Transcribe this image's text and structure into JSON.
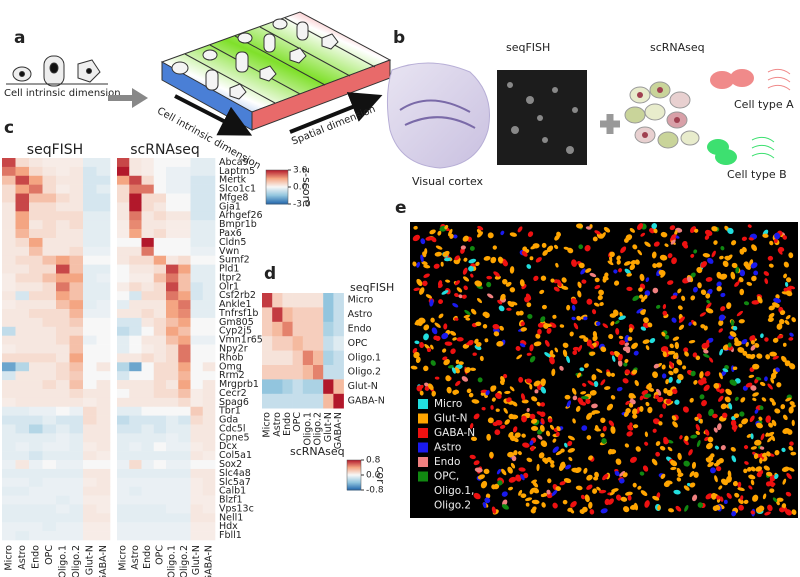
{
  "panel_a": {
    "label": "a",
    "cell_axis": "Cell intrinsic dimension",
    "slab_cell_axis": "Cell intrinsic dimension",
    "slab_spatial_axis": "Spatial dimension"
  },
  "panel_b": {
    "label": "b",
    "seqfish_title": "seqFISH",
    "scrnaseq_title": "scRNAseq",
    "visual_cortex": "Visual cortex",
    "cell_type_a": "Cell type A",
    "cell_type_b": "Cell type B"
  },
  "panel_c": {
    "label": "c",
    "cell_types": [
      "Micro",
      "Astro",
      "Endo",
      "OPC",
      "Oligo.1",
      "Oligo.2",
      "Glut-N",
      "GABA-N"
    ],
    "genes": [
      "Abca9",
      "Laptm5",
      "Mertk",
      "Slco1c1",
      "Mfge8",
      "Gja1",
      "Arhgef26",
      "Bmpr1b",
      "Pax6",
      "Cldn5",
      "Vwn",
      "Sumf2",
      "Pld1",
      "Itpr2",
      "Olr1",
      "Csf2rb2",
      "Ankle1",
      "Tnfrsf1b",
      "Gm805",
      "Cyp2j5",
      "Vmn1r65",
      "Npy2r",
      "Rhob",
      "Omg",
      "Rrm2",
      "Mrgprb1",
      "Cecr2",
      "Spag6",
      "Tbr1",
      "Gda",
      "Cdc5l",
      "Cpne5",
      "Dcx",
      "Col5a1",
      "Sox2",
      "Slc4a8",
      "Slc5a7",
      "Calb1",
      "Blzf1",
      "Vps13c",
      "Nell1",
      "Hdx",
      "Fbll1"
    ],
    "heatmaps": [
      {
        "title": "seqFISH",
        "values": [
          [
            2.5,
            0.5,
            0.3,
            0.2,
            0.2,
            0.2,
            -0.3,
            -0.3
          ],
          [
            2,
            1.5,
            0.5,
            0.3,
            0.2,
            0.3,
            -0.5,
            -0.3
          ],
          [
            1,
            2.5,
            1.5,
            0.5,
            0.3,
            0.3,
            -0.5,
            -0.5
          ],
          [
            0.5,
            1.5,
            2,
            0.5,
            0.2,
            0.3,
            -0.5,
            -0.3
          ],
          [
            0.5,
            2.5,
            1,
            1,
            0.5,
            0.3,
            -0.5,
            -0.5
          ],
          [
            0.3,
            2.5,
            0.5,
            0.5,
            0.3,
            0.3,
            -0.5,
            -0.5
          ],
          [
            0.3,
            1.5,
            0.5,
            0.5,
            0.5,
            0.5,
            -0.3,
            -0.3
          ],
          [
            0.3,
            1.5,
            0.3,
            0.5,
            0.3,
            0.5,
            -0.3,
            -0.3
          ],
          [
            0.3,
            1.2,
            0.5,
            0.5,
            0.3,
            0.3,
            -0.3,
            -0.3
          ],
          [
            0.3,
            0.5,
            1.5,
            0.3,
            0.3,
            0.3,
            -0.3,
            -0.3
          ],
          [
            0.3,
            0.3,
            1,
            0.3,
            0.3,
            0.5,
            -0.2,
            -0.2
          ],
          [
            0.3,
            0.5,
            0.5,
            1,
            1.5,
            1,
            0,
            0
          ],
          [
            0.3,
            0.3,
            0.5,
            0.5,
            2.5,
            1,
            -0.3,
            -0.3
          ],
          [
            0.2,
            0.5,
            0.5,
            1,
            1.5,
            1.5,
            -0.3,
            -0.2
          ],
          [
            0.2,
            0.3,
            0.3,
            0.5,
            2,
            1,
            -0.3,
            -0.3
          ],
          [
            0.3,
            -0.5,
            0.5,
            0.5,
            1.5,
            1,
            -0.3,
            -0.3
          ],
          [
            0.2,
            0.3,
            0.3,
            0.3,
            1,
            1.5,
            -0.3,
            -0.2
          ],
          [
            0.3,
            0.3,
            0.5,
            0.5,
            0.5,
            1.2,
            -0.2,
            -0.2
          ],
          [
            0.3,
            0.3,
            0.3,
            0.5,
            0.5,
            0.8,
            0,
            0
          ],
          [
            -0.8,
            0.3,
            0.3,
            0.3,
            0.5,
            0.5,
            0,
            0
          ],
          [
            0.3,
            0.3,
            0.3,
            0.3,
            0.5,
            1,
            -0.2,
            0
          ],
          [
            0.2,
            0.3,
            0.3,
            0.3,
            0.3,
            1,
            0,
            0
          ],
          [
            0.5,
            0.5,
            0.5,
            0.5,
            0.3,
            1.5,
            0,
            0
          ],
          [
            -2,
            -1,
            0.3,
            0.3,
            0.5,
            1,
            0,
            0.3
          ],
          [
            -0.5,
            0.3,
            0.3,
            0.3,
            0.5,
            0.8,
            0,
            0
          ],
          [
            0.3,
            0.3,
            0.3,
            0.5,
            0.3,
            1,
            0,
            0.3
          ],
          [
            0.3,
            0.3,
            0.3,
            0.3,
            0.3,
            0.5,
            0.3,
            0.3
          ],
          [
            0.2,
            0.3,
            0.3,
            0.3,
            0.3,
            0.3,
            0.2,
            0.3
          ],
          [
            -0.3,
            -0.3,
            -0.2,
            -0.2,
            0,
            -0.2,
            0.5,
            0.3
          ],
          [
            -0.5,
            -0.5,
            -0.5,
            -0.3,
            -0.5,
            -0.5,
            0.5,
            0.3
          ],
          [
            -0.3,
            -0.5,
            -1,
            -0.5,
            -0.3,
            -0.5,
            0.3,
            0.3
          ],
          [
            -0.3,
            -0.3,
            -0.3,
            -0.3,
            -0.2,
            -0.3,
            0.3,
            0.3
          ],
          [
            -0.3,
            -0.2,
            -0.3,
            -0.2,
            -0.2,
            -0.3,
            0.2,
            0.3
          ],
          [
            -0.3,
            -0.3,
            -0.5,
            -0.3,
            -0.3,
            -0.3,
            0.3,
            0.2
          ],
          [
            -0.2,
            0.3,
            -0.2,
            0,
            -0.2,
            -0.2,
            0,
            0
          ],
          [
            -0.3,
            -0.3,
            -0.3,
            -0.3,
            -0.3,
            -0.3,
            0.3,
            0.3
          ],
          [
            -0.2,
            -0.2,
            -0.3,
            -0.2,
            -0.2,
            -0.2,
            0.2,
            0.3
          ],
          [
            -0.3,
            -0.3,
            -0.2,
            -0.2,
            -0.2,
            -0.2,
            0.3,
            0.3
          ],
          [
            -0.2,
            -0.2,
            -0.2,
            -0.2,
            -0.3,
            -0.2,
            0.2,
            0.2
          ],
          [
            -0.3,
            -0.3,
            -0.3,
            -0.3,
            -0.2,
            -0.3,
            0.3,
            0.2
          ],
          [
            -0.3,
            -0.3,
            -0.3,
            -0.3,
            -0.3,
            -0.3,
            0.3,
            0.3
          ],
          [
            -0.2,
            -0.2,
            -0.2,
            -0.3,
            -0.2,
            -0.2,
            0.2,
            0.2
          ],
          [
            -0.2,
            -0.3,
            -0.2,
            -0.2,
            -0.2,
            -0.2,
            0.2,
            0.2
          ]
        ]
      },
      {
        "title": "scRNAseq",
        "values": [
          [
            2.5,
            0.3,
            0.2,
            0,
            0,
            0,
            -0.3,
            -0.3
          ],
          [
            3,
            0.3,
            0.2,
            0,
            -0.2,
            -0.2,
            -0.3,
            -0.3
          ],
          [
            1.5,
            2.5,
            0.5,
            0,
            -0.2,
            -0.2,
            -0.5,
            -0.5
          ],
          [
            0.5,
            2,
            2,
            0,
            -0.2,
            -0.2,
            -0.5,
            -0.5
          ],
          [
            0.5,
            3,
            0.5,
            0.5,
            0,
            0,
            -0.5,
            -0.5
          ],
          [
            0.3,
            3,
            0.5,
            0.3,
            0,
            0,
            -0.5,
            -0.5
          ],
          [
            0.3,
            2,
            0.3,
            0.5,
            0.3,
            0.3,
            -0.5,
            -0.5
          ],
          [
            0.2,
            1.8,
            0.3,
            0.3,
            0.2,
            0.2,
            -0.3,
            -0.3
          ],
          [
            0.2,
            1.5,
            0.3,
            0.5,
            0.2,
            0.2,
            -0.3,
            -0.3
          ],
          [
            0,
            0,
            3,
            0,
            0,
            0,
            -0.3,
            -0.3
          ],
          [
            0.3,
            0.3,
            2,
            0,
            0,
            0,
            -0.2,
            -0.2
          ],
          [
            0.3,
            0.5,
            0.5,
            1.5,
            0.3,
            0.5,
            0,
            0
          ],
          [
            0,
            0.3,
            0.3,
            0.5,
            2.5,
            1.5,
            -0.3,
            -0.3
          ],
          [
            0,
            0.2,
            0.2,
            1,
            2,
            1,
            -0.3,
            -0.3
          ],
          [
            0.2,
            0.5,
            0.3,
            0.5,
            2.5,
            1,
            -0.5,
            -0.3
          ],
          [
            0,
            -0.5,
            0.5,
            0.5,
            2,
            1.5,
            -0.5,
            -0.3
          ],
          [
            -0.3,
            0.3,
            0.3,
            0.3,
            1.5,
            2,
            -0.3,
            -0.3
          ],
          [
            0.3,
            0.3,
            0.5,
            0.3,
            1.5,
            1.8,
            -0.3,
            -0.3
          ],
          [
            -0.5,
            -0.5,
            0.3,
            0.5,
            1,
            1.5,
            0,
            0
          ],
          [
            -0.8,
            -0.5,
            0,
            0.5,
            1.5,
            1,
            0,
            0
          ],
          [
            -0.3,
            0,
            0.3,
            0.3,
            1,
            1.5,
            -0.2,
            -0.2
          ],
          [
            -0.3,
            0,
            0.2,
            0.3,
            0.5,
            2,
            0,
            0
          ],
          [
            0.3,
            0.3,
            0.5,
            0.3,
            0.5,
            2,
            0,
            0
          ],
          [
            -1,
            -2,
            0,
            0.5,
            0.5,
            1.5,
            0,
            0.3
          ],
          [
            -0.5,
            0,
            0,
            0.5,
            0.5,
            1.2,
            0,
            0
          ],
          [
            0.3,
            0.3,
            0.3,
            0.5,
            0.3,
            1.5,
            0,
            0.3
          ],
          [
            0,
            0.3,
            0.3,
            0.5,
            0.5,
            1,
            0.2,
            0.3
          ],
          [
            0.3,
            0.3,
            0.3,
            0.3,
            0.3,
            0.5,
            0.2,
            0.3
          ],
          [
            -0.3,
            -0.3,
            0,
            0,
            0,
            0,
            0.8,
            0.3
          ],
          [
            -0.8,
            -0.5,
            -0.5,
            -0.5,
            -0.3,
            -0.5,
            0.5,
            0.3
          ],
          [
            -0.5,
            -0.5,
            -0.3,
            -0.5,
            -0.3,
            -0.3,
            0.3,
            0.3
          ],
          [
            -0.3,
            -0.3,
            -0.3,
            -0.3,
            -0.2,
            -0.3,
            0.3,
            0.3
          ],
          [
            -0.3,
            -0.2,
            -0.3,
            0,
            -0.2,
            -0.2,
            0.2,
            0.3
          ],
          [
            -0.3,
            -0.3,
            -0.3,
            -0.3,
            -0.3,
            -0.3,
            0.3,
            0.2
          ],
          [
            -0.2,
            0.5,
            -0.2,
            0,
            -0.2,
            -0.2,
            0,
            0
          ],
          [
            -0.3,
            -0.3,
            -0.3,
            -0.3,
            -0.3,
            -0.3,
            0.3,
            0.3
          ],
          [
            -0.2,
            -0.2,
            -0.2,
            -0.2,
            -0.2,
            -0.2,
            0.2,
            0.3
          ],
          [
            -0.2,
            -0.3,
            -0.2,
            -0.2,
            -0.2,
            -0.2,
            0.2,
            0.3
          ],
          [
            -0.2,
            -0.2,
            -0.2,
            -0.2,
            -0.2,
            -0.2,
            0.2,
            0.2
          ],
          [
            -0.3,
            -0.3,
            -0.3,
            -0.3,
            -0.2,
            -0.2,
            0.3,
            0.2
          ],
          [
            -0.3,
            -0.3,
            -0.3,
            -0.3,
            -0.3,
            -0.3,
            0.3,
            0.3
          ],
          [
            -0.2,
            -0.2,
            -0.2,
            -0.2,
            -0.2,
            -0.2,
            0.2,
            0.2
          ],
          [
            -0.2,
            -0.2,
            -0.2,
            -0.2,
            -0.2,
            -0.2,
            0.2,
            0.2
          ]
        ]
      }
    ],
    "colorbar": {
      "title": "z-score",
      "ticks": [
        {
          "value": 3,
          "label": "3.0"
        },
        {
          "value": 0,
          "label": "0.0"
        },
        {
          "value": -3,
          "label": "-3.0"
        }
      ]
    }
  },
  "panel_d": {
    "label": "d",
    "row_title": "seqFISH",
    "col_title": "scRNAseq",
    "cell_types": [
      "Micro",
      "Astro",
      "Endo",
      "OPC",
      "Oligo.1",
      "Oligo.2",
      "Glut-N",
      "GABA-N"
    ],
    "values": [
      [
        0.7,
        0.2,
        0.1,
        0.1,
        0.1,
        0.1,
        -0.4,
        -0.2
      ],
      [
        0.2,
        0.7,
        0.3,
        0.2,
        0.2,
        0.2,
        -0.4,
        -0.2
      ],
      [
        0.2,
        0.3,
        0.5,
        0.2,
        0.2,
        0.2,
        -0.3,
        -0.2
      ],
      [
        0.1,
        0.2,
        0.2,
        0.3,
        0.2,
        0.2,
        -0.2,
        -0.1
      ],
      [
        0.1,
        0.1,
        0.1,
        0.2,
        0.5,
        0.3,
        -0.3,
        -0.2
      ],
      [
        0.2,
        0.2,
        0.2,
        0.2,
        0.3,
        0.5,
        -0.2,
        -0.2
      ],
      [
        -0.4,
        -0.4,
        -0.3,
        -0.2,
        -0.3,
        -0.3,
        0.8,
        0.3
      ],
      [
        -0.2,
        -0.2,
        -0.2,
        -0.2,
        -0.2,
        -0.2,
        0.3,
        0.8
      ]
    ],
    "colorbar": {
      "title": "cor",
      "ticks": [
        {
          "value": 0.8,
          "label": "0.8"
        },
        {
          "value": 0,
          "label": "0.0"
        },
        {
          "value": -0.8,
          "label": "-0.8"
        }
      ]
    }
  },
  "panel_e": {
    "label": "e",
    "legend": [
      {
        "lines": [
          "Micro"
        ],
        "color": "#22dddd"
      },
      {
        "lines": [
          "Glut-N"
        ],
        "color": "#ffa500"
      },
      {
        "lines": [
          "GABA-N"
        ],
        "color": "#ee1111"
      },
      {
        "lines": [
          "Astro"
        ],
        "color": "#1a1aee"
      },
      {
        "lines": [
          "Endo"
        ],
        "color": "#f08080"
      },
      {
        "lines": [
          "OPC,",
          "Oligo.1,",
          "Oligo.2"
        ],
        "color": "#118811"
      }
    ]
  }
}
